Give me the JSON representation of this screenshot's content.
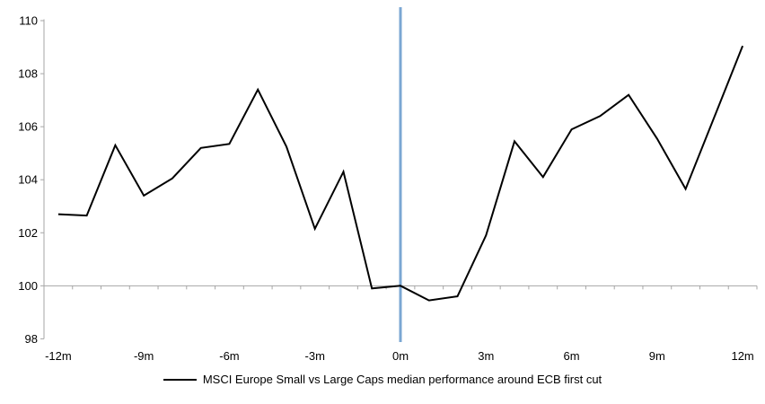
{
  "chart_data": {
    "type": "line",
    "x": [
      -12,
      -11,
      -10,
      -9,
      -8,
      -7,
      -6,
      -5,
      -4,
      -3,
      -2,
      -1,
      0,
      1,
      2,
      3,
      4,
      5,
      6,
      7,
      8,
      9,
      10,
      11,
      12
    ],
    "series": [
      {
        "name": "MSCI Europe Small vs Large Caps median performance around ECB first cut",
        "values": [
          102.7,
          102.65,
          105.3,
          103.4,
          104.05,
          105.2,
          105.35,
          107.4,
          105.25,
          102.15,
          104.3,
          99.9,
          100.0,
          99.45,
          99.6,
          101.9,
          105.45,
          104.1,
          105.9,
          106.4,
          107.2,
          105.55,
          103.65,
          106.35,
          109.05
        ],
        "color": "#000000"
      }
    ],
    "title": "",
    "xlabel": "",
    "ylabel": "",
    "xlim": [
      -12.5,
      12.5
    ],
    "ylim": [
      98,
      110
    ],
    "y_ticks": [
      98,
      100,
      102,
      104,
      106,
      108,
      110
    ],
    "x_tick_months": [
      -12,
      -9,
      -6,
      -3,
      0,
      3,
      6,
      9,
      12
    ],
    "x_tick_labels": [
      "-12m",
      "-9m",
      "-6m",
      "-3m",
      "0m",
      "3m",
      "6m",
      "9m",
      "12m"
    ],
    "baseline_value": 100,
    "event_line_x": 0,
    "grid": "off",
    "legend_position": "bottom-center",
    "colors": {
      "series_line": "#000000",
      "event_line": "#7BA7D3",
      "axis": "#A6A6A6",
      "tick_text": "#000000"
    }
  }
}
